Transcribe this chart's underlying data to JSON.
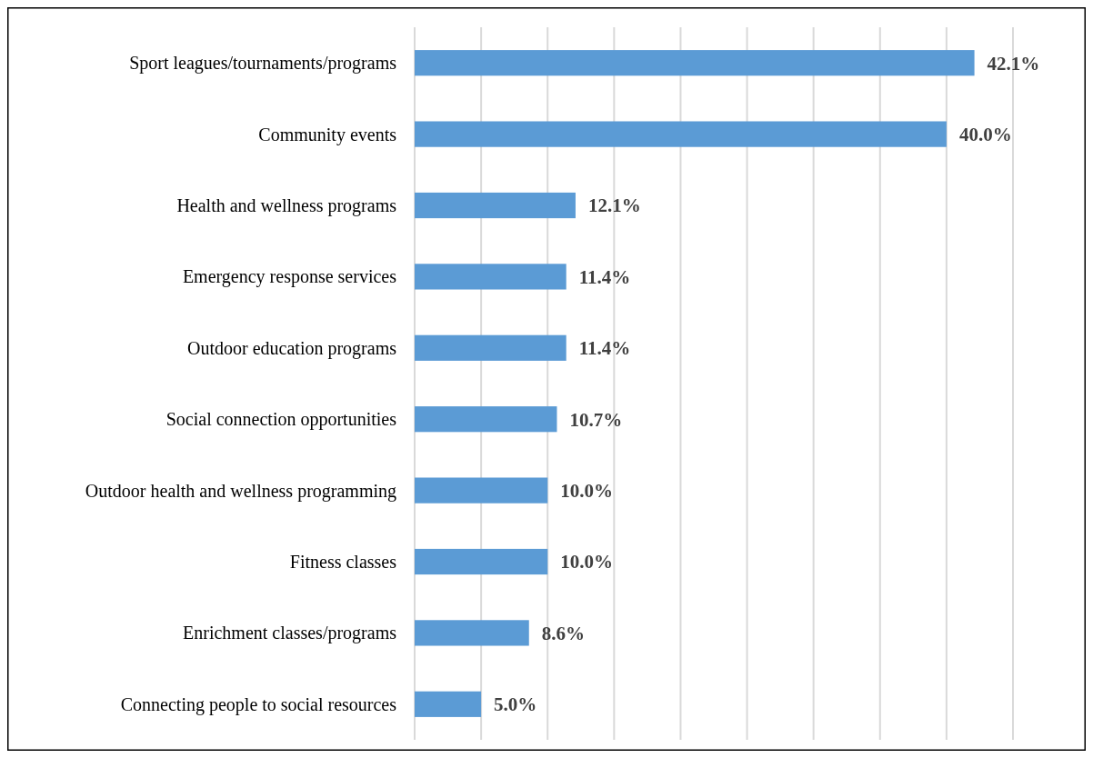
{
  "chart_data": {
    "type": "bar",
    "orientation": "horizontal",
    "categories": [
      "Sport leagues/tournaments/programs",
      "Community events",
      "Health and wellness programs",
      "Emergency response services",
      "Outdoor education programs",
      "Social connection opportunities",
      "Outdoor health and wellness programming",
      "Fitness classes",
      "Enrichment classes/programs",
      "Connecting people to social resources"
    ],
    "values": [
      42.1,
      40.0,
      12.1,
      11.4,
      11.4,
      10.7,
      10.0,
      10.0,
      8.6,
      5.0
    ],
    "value_labels": [
      "42.1%",
      "40.0%",
      "12.1%",
      "11.4%",
      "11.4%",
      "10.7%",
      "10.0%",
      "10.0%",
      "8.6%",
      "5.0%"
    ],
    "color": "#5b9bd5",
    "xlim": [
      0,
      45
    ],
    "xticks": [
      {
        "value": 0,
        "label": null
      },
      {
        "value": 5,
        "label": null
      },
      {
        "value": 10,
        "label": null
      },
      {
        "value": 15,
        "label": null
      },
      {
        "value": 20,
        "label": null
      },
      {
        "value": 25,
        "label": null
      },
      {
        "value": 30,
        "label": null
      },
      {
        "value": 35,
        "label": null
      },
      {
        "value": 40,
        "label": null
      },
      {
        "value": 45,
        "label": null
      }
    ],
    "grid": "x",
    "tick_labels": "y"
  }
}
